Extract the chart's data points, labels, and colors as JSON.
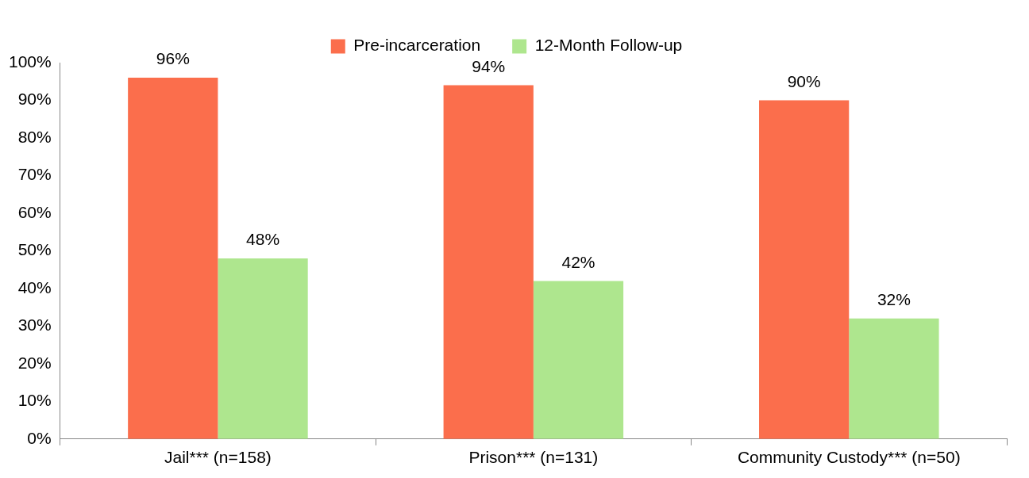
{
  "chart_data": {
    "type": "bar",
    "categories": [
      "Jail*** (n=158)",
      "Prison*** (n=131)",
      "Community Custody*** (n=50)"
    ],
    "series": [
      {
        "name": "Pre-incarceration",
        "color": "#fb6e4c",
        "values": [
          96,
          94,
          90
        ],
        "value_labels": [
          "96%",
          "94%",
          "90%"
        ]
      },
      {
        "name": "12-Month Follow-up",
        "color": "#aee68e",
        "values": [
          48,
          42,
          32
        ],
        "value_labels": [
          "48%",
          "42%",
          "32%"
        ]
      }
    ],
    "ylim": [
      0,
      100
    ],
    "yticks": [
      {
        "value": 0,
        "label": "0%"
      },
      {
        "value": 10,
        "label": "10%"
      },
      {
        "value": 20,
        "label": "20%"
      },
      {
        "value": 30,
        "label": "30%"
      },
      {
        "value": 40,
        "label": "40%"
      },
      {
        "value": 50,
        "label": "50%"
      },
      {
        "value": 60,
        "label": "60%"
      },
      {
        "value": 70,
        "label": "70%"
      },
      {
        "value": 80,
        "label": "80%"
      },
      {
        "value": 90,
        "label": "90%"
      },
      {
        "value": 100,
        "label": "100%"
      }
    ],
    "grid": false,
    "legend": "top"
  }
}
